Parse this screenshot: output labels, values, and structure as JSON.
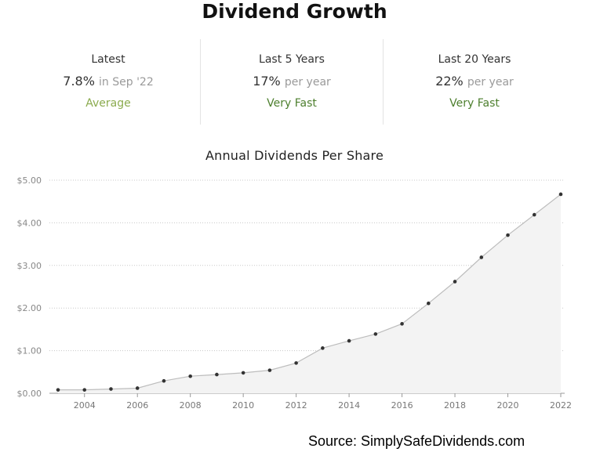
{
  "title": "Dividend Growth",
  "stats": [
    {
      "label": "Latest",
      "value": "7.8%",
      "suffix": "in Sep '22",
      "rating": "Average",
      "rating_color": "#8bab4e"
    },
    {
      "label": "Last 5 Years",
      "value": "17%",
      "suffix": "per year",
      "rating": "Very Fast",
      "rating_color": "#4d7f2e"
    },
    {
      "label": "Last 20 Years",
      "value": "22%",
      "suffix": "per year",
      "rating": "Very Fast",
      "rating_color": "#4d7f2e"
    }
  ],
  "source": "Source: SimplySafeDividends.com",
  "chart_data": {
    "type": "area",
    "title": "Annual Dividends Per Share",
    "x": [
      2003,
      2004,
      2005,
      2006,
      2007,
      2008,
      2009,
      2010,
      2011,
      2012,
      2013,
      2014,
      2015,
      2016,
      2017,
      2018,
      2019,
      2020,
      2021,
      2022
    ],
    "series": [
      {
        "values": [
          0.08,
          0.08,
          0.1,
          0.12,
          0.29,
          0.4,
          0.44,
          0.48,
          0.54,
          0.71,
          1.06,
          1.23,
          1.39,
          1.63,
          2.11,
          2.62,
          3.19,
          3.71,
          4.19,
          4.67
        ]
      }
    ],
    "xticks": [
      "2004",
      "2006",
      "2008",
      "2010",
      "2012",
      "2014",
      "2016",
      "2018",
      "2020",
      "2022"
    ],
    "yticks": [
      "$0.00",
      "$1.00",
      "$2.00",
      "$3.00",
      "$4.00",
      "$5.00"
    ],
    "ylim": [
      0,
      5
    ],
    "xlim": [
      2003,
      2022
    ],
    "grid": true,
    "line_color": "#bdbdbd",
    "fill_color": "#f3f3f3",
    "point_color": "#333333"
  }
}
